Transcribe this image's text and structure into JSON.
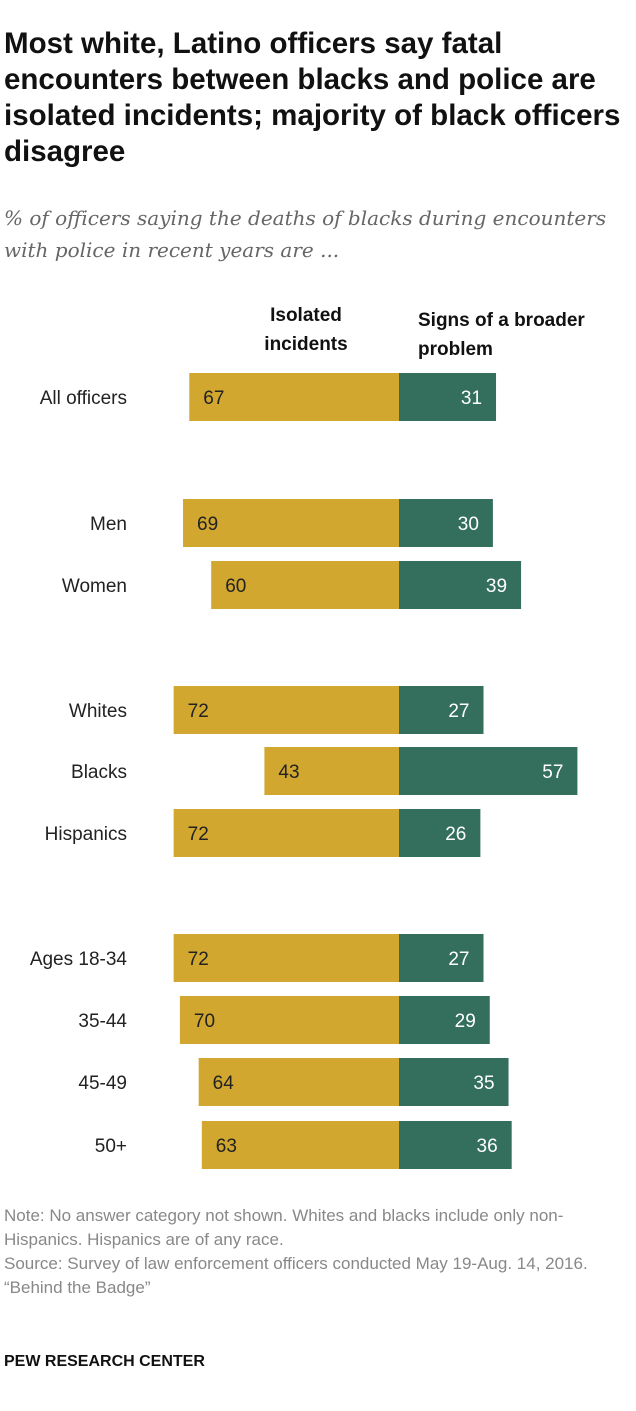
{
  "title": "Most white, Latino officers say fatal encounters between blacks and police are isolated incidents; majority of black officers disagree",
  "subtitle": "% of officers saying the deaths of blacks during encounters with police in recent years are ...",
  "notes": [
    "Note: No answer category not shown. Whites and blacks include only non-Hispanics. Hispanics are of any race.",
    "Source: Survey of law enforcement officers conducted May 19-Aug. 14, 2016.",
    "“Behind the Badge”"
  ],
  "brand": "PEW RESEARCH CENTER",
  "chart_data": {
    "type": "bar",
    "orientation": "horizontal-diverging",
    "categories": [
      "All officers",
      "Men",
      "Women",
      "Whites",
      "Blacks",
      "Hispanics",
      "Ages 18-34",
      "35-44",
      "45-49",
      "50+"
    ],
    "series": [
      {
        "name": "Isolated incidents",
        "color": "#D1A730",
        "values": [
          67,
          69,
          60,
          72,
          43,
          72,
          72,
          70,
          64,
          63
        ]
      },
      {
        "name": "Signs of a broader problem",
        "color": "#346F5E",
        "values": [
          31,
          30,
          39,
          27,
          57,
          26,
          27,
          29,
          35,
          36
        ]
      }
    ],
    "groups": [
      [
        "All officers"
      ],
      [
        "Men",
        "Women"
      ],
      [
        "Whites",
        "Blacks",
        "Hispanics"
      ],
      [
        "Ages 18-34",
        "35-44",
        "45-49",
        "50+"
      ]
    ],
    "legend_placement": "top",
    "grid": false
  }
}
